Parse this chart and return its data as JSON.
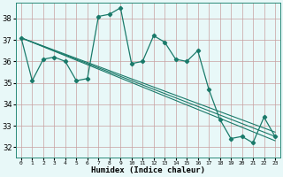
{
  "xlabel": "Humidex (Indice chaleur)",
  "bg_color": "#e8f8f8",
  "plot_bg_color": "#e8f8f8",
  "grid_color": "#c8a0a0",
  "line_color": "#1a7a6a",
  "xlim": [
    -0.5,
    23.5
  ],
  "ylim": [
    31.5,
    38.75
  ],
  "yticks": [
    32,
    33,
    34,
    35,
    36,
    37,
    38
  ],
  "xtick_labels": [
    "0",
    "1",
    "2",
    "3",
    "4",
    "5",
    "6",
    "7",
    "8",
    "9",
    "10",
    "11",
    "12",
    "13",
    "14",
    "15",
    "16",
    "17",
    "18",
    "19",
    "20",
    "21",
    "22",
    "23"
  ],
  "series": [
    [
      37.1,
      35.1,
      36.1,
      36.2,
      36.0,
      35.1,
      35.2,
      38.1,
      38.2,
      38.5,
      35.9,
      36.0,
      37.2,
      36.9,
      36.1,
      36.0,
      36.5,
      34.7,
      33.3,
      32.4,
      32.5,
      32.2,
      33.4,
      32.5
    ]
  ],
  "trend_lines": [
    {
      "x": [
        0,
        23
      ],
      "y": [
        37.1,
        32.3
      ]
    },
    {
      "x": [
        0,
        23
      ],
      "y": [
        37.1,
        32.5
      ]
    },
    {
      "x": [
        0,
        23
      ],
      "y": [
        37.1,
        32.7
      ]
    }
  ]
}
